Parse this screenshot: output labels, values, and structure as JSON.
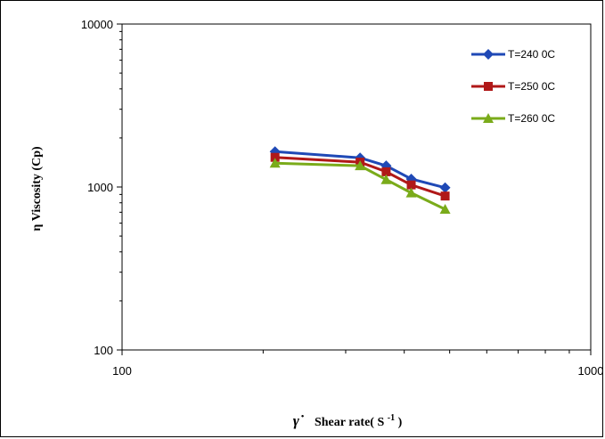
{
  "chart_data": {
    "type": "line",
    "x_scale": "log",
    "y_scale": "log",
    "xlim": [
      100,
      1000
    ],
    "ylim": [
      100,
      10000
    ],
    "x_ticks": [
      "100",
      "1000"
    ],
    "y_ticks": [
      "100",
      "1000",
      "10000"
    ],
    "xlabel_symbol": "γ˙",
    "xlabel_text": "Shear rate(",
    "xlabel_unit": "S",
    "xlabel_sup": "-1",
    "xlabel_close": ")",
    "ylabel": "η Viscosity (Cp)",
    "legend_position": "top-right",
    "grid": false,
    "series": [
      {
        "name": "T=240 0C",
        "marker": "diamond",
        "color": "#1f49b6",
        "x": [
          212,
          322,
          366,
          414,
          489
        ],
        "y": [
          1650,
          1510,
          1350,
          1120,
          990
        ]
      },
      {
        "name": "T=250 0C",
        "marker": "square",
        "color": "#b01818",
        "x": [
          212,
          322,
          366,
          414,
          489
        ],
        "y": [
          1520,
          1420,
          1240,
          1030,
          880
        ]
      },
      {
        "name": "T=260 0C",
        "marker": "triangle",
        "color": "#7aab1a",
        "x": [
          212,
          322,
          366,
          414,
          489
        ],
        "y": [
          1400,
          1350,
          1110,
          920,
          730
        ]
      }
    ]
  }
}
